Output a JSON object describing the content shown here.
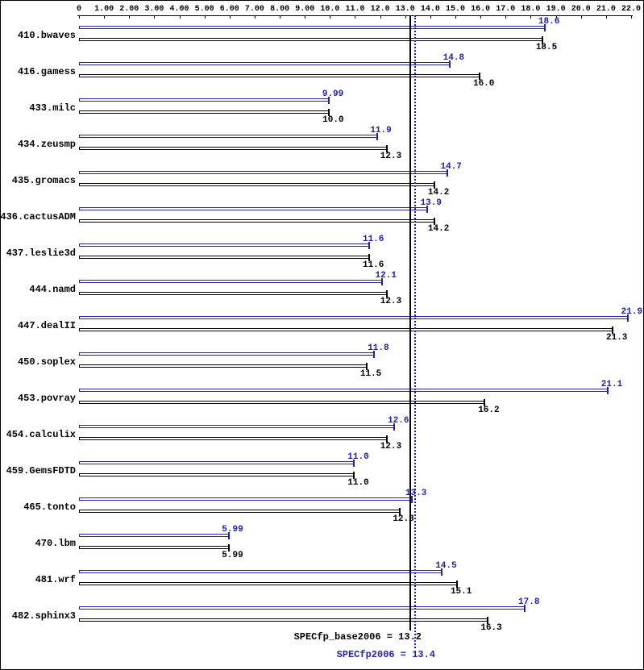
{
  "axis": {
    "min": 0,
    "max": 22,
    "tick_labels": [
      "0",
      "1.00",
      "2.00",
      "3.00",
      "4.00",
      "5.00",
      "6.00",
      "7.00",
      "8.00",
      "9.00",
      "10.0",
      "11.0",
      "12.0",
      "13.0",
      "14.0",
      "15.0",
      "16.0",
      "17.0",
      "18.0",
      "19.0",
      "20.0",
      "21.0",
      "22.0"
    ]
  },
  "chart_data": {
    "type": "bar",
    "orientation": "horizontal",
    "xlim": [
      0,
      22
    ],
    "grid": false,
    "categories": [
      "410.bwaves",
      "416.gamess",
      "433.milc",
      "434.zeusmp",
      "435.gromacs",
      "436.cactusADM",
      "437.leslie3d",
      "444.namd",
      "447.dealII",
      "450.soplex",
      "453.povray",
      "454.calculix",
      "459.GemsFDTD",
      "465.tonto",
      "470.lbm",
      "481.wrf",
      "482.sphinx3"
    ],
    "series": [
      {
        "name": "peak",
        "color": "#2222aa",
        "values": [
          18.6,
          14.8,
          9.99,
          11.9,
          14.7,
          13.9,
          11.6,
          12.1,
          21.9,
          11.8,
          21.1,
          12.6,
          11.0,
          13.3,
          5.99,
          14.5,
          17.8
        ],
        "labels": [
          "18.6",
          "14.8",
          "9.99",
          "11.9",
          "14.7",
          "13.9",
          "11.6",
          "12.1",
          "21.9",
          "11.8",
          "21.1",
          "12.6",
          "11.0",
          "13.3",
          "5.99",
          "14.5",
          "17.8"
        ]
      },
      {
        "name": "base",
        "color": "#000000",
        "values": [
          18.5,
          16.0,
          10.0,
          12.3,
          14.2,
          14.2,
          11.6,
          12.3,
          21.3,
          11.5,
          16.2,
          12.3,
          11.0,
          12.8,
          5.99,
          15.1,
          16.3
        ],
        "labels": [
          "18.5",
          "16.0",
          "10.0",
          "12.3",
          "14.2",
          "14.2",
          "11.6",
          "12.3",
          "21.3",
          "11.5",
          "16.2",
          "12.3",
          "11.0",
          "12.8",
          "5.99",
          "15.1",
          "16.3"
        ]
      }
    ],
    "reference_lines": [
      {
        "name": "base_mean",
        "value": 13.2,
        "style": "solid",
        "color": "#000000",
        "label": "SPECfp_base2006 = 13.2"
      },
      {
        "name": "peak_mean",
        "value": 13.4,
        "style": "dotted",
        "color": "#2222aa",
        "label": "SPECfp2006 = 13.4"
      }
    ]
  }
}
